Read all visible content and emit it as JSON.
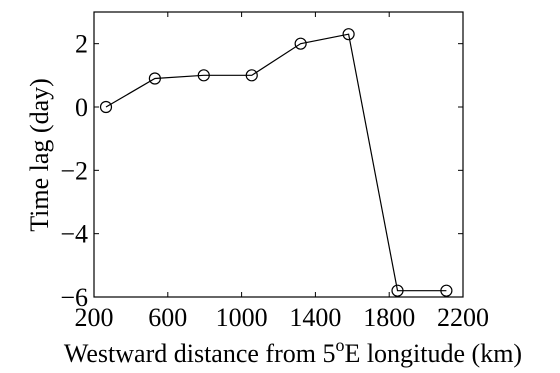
{
  "chart_data": {
    "type": "line",
    "title": "",
    "xlabel": {
      "prefix": "Westward distance from 5",
      "superscript": "o",
      "suffix": "E longitude (km)"
    },
    "ylabel": "Time lag (day)",
    "xlim": [
      200,
      2200
    ],
    "ylim": [
      -6,
      3
    ],
    "xticks": [
      200,
      600,
      1000,
      1400,
      1800,
      2200
    ],
    "yticks": [
      2,
      0,
      -2,
      -4,
      -6
    ],
    "ytick_labels": [
      "2",
      "0",
      "−2",
      "−4",
      "−6"
    ],
    "grid": false,
    "legend": "none",
    "marker": "open-circle",
    "series": [
      {
        "x": [
          265,
          530,
          795,
          1055,
          1320,
          1580,
          1845,
          2110
        ],
        "values": [
          0,
          0.9,
          1.0,
          1.0,
          2.0,
          2.3,
          -5.8,
          -5.8
        ]
      }
    ]
  }
}
